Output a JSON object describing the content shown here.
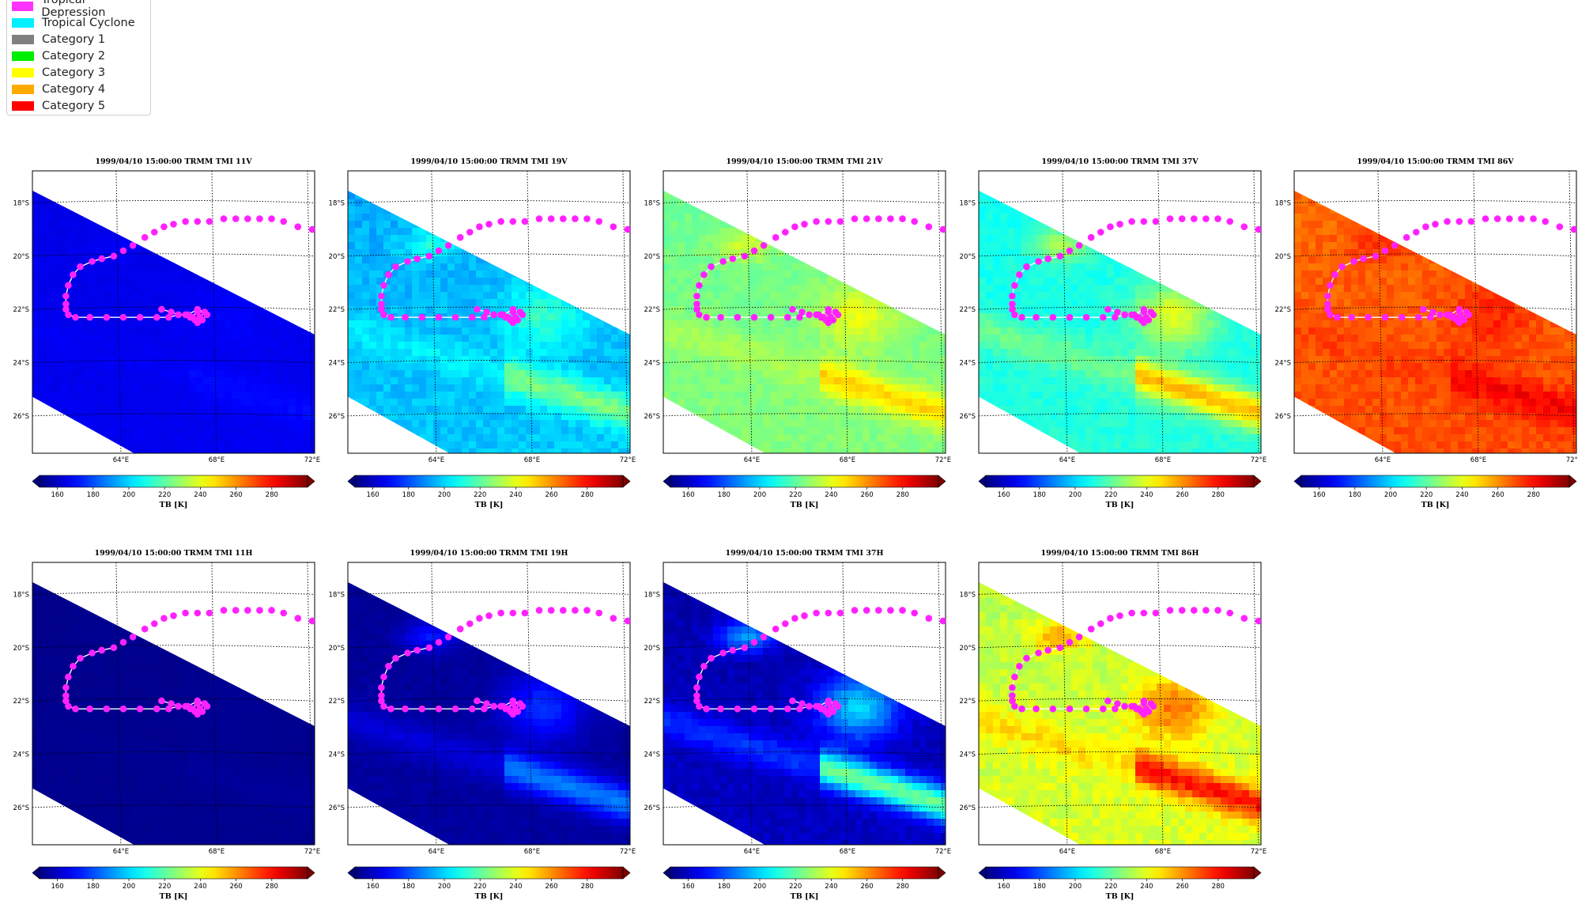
{
  "legend": {
    "items": [
      {
        "label": "Tropical Depression",
        "color": "#ff33ff"
      },
      {
        "label": "Tropical Cyclone",
        "color": "#00f0ff"
      },
      {
        "label": "Category 1",
        "color": "#808080"
      },
      {
        "label": "Category 2",
        "color": "#00ee00"
      },
      {
        "label": "Category 3",
        "color": "#ffff00"
      },
      {
        "label": "Category 4",
        "color": "#ffaa00"
      },
      {
        "label": "Category 5",
        "color": "#ff0000"
      }
    ]
  },
  "colorbar": {
    "label": "TB [K]",
    "ticks": [
      "160",
      "180",
      "200",
      "220",
      "240",
      "260",
      "280"
    ],
    "tick_values": [
      160,
      180,
      200,
      220,
      240,
      260,
      280
    ],
    "range": [
      150,
      300
    ]
  },
  "map": {
    "lat_labels": [
      "18°S",
      "20°S",
      "22°S",
      "24°S",
      "26°S"
    ],
    "lat_values": [
      -18,
      -20,
      -22,
      -24,
      -26
    ],
    "lon_labels": [
      "64°E",
      "68°E",
      "72°E"
    ],
    "lon_values": [
      64,
      68,
      72
    ],
    "lon_range": [
      60.4,
      72.2
    ],
    "lat_range": [
      -27.4,
      -16.8
    ]
  },
  "chart_data": [
    {
      "type": "heatmap",
      "title": "1999/04/10 15:00:00  TRMM TMI 11V",
      "channel": "11V",
      "base_tb": 166,
      "storm_tb": 4,
      "noise": 2,
      "xlabel": "",
      "ylabel": "",
      "colorbar_label": "TB [K]"
    },
    {
      "type": "heatmap",
      "title": "1999/04/10 15:00:00  TRMM TMI 19V",
      "channel": "19V",
      "base_tb": 196,
      "storm_tb": 30,
      "noise": 8,
      "xlabel": "",
      "ylabel": "",
      "colorbar_label": "TB [K]"
    },
    {
      "type": "heatmap",
      "title": "1999/04/10 15:00:00  TRMM TMI 21V",
      "channel": "21V",
      "base_tb": 224,
      "storm_tb": 28,
      "noise": 6,
      "xlabel": "",
      "ylabel": "",
      "colorbar_label": "TB [K]"
    },
    {
      "type": "heatmap",
      "title": "1999/04/10 15:00:00  TRMM TMI 37V",
      "channel": "37V",
      "base_tb": 210,
      "storm_tb": 48,
      "noise": 6,
      "xlabel": "",
      "ylabel": "",
      "colorbar_label": "TB [K]"
    },
    {
      "type": "heatmap",
      "title": "1999/04/10 15:00:00  TRMM TMI 86V",
      "channel": "86V",
      "base_tb": 268,
      "storm_tb": 14,
      "noise": 8,
      "xlabel": "",
      "ylabel": "",
      "colorbar_label": "TB [K]"
    },
    {
      "type": "heatmap",
      "title": "1999/04/10 15:00:00  TRMM TMI 11H",
      "channel": "11H",
      "base_tb": 152,
      "storm_tb": 2,
      "noise": 1,
      "xlabel": "",
      "ylabel": "",
      "colorbar_label": "TB [K]"
    },
    {
      "type": "heatmap",
      "title": "1999/04/10 15:00:00  TRMM TMI 19H",
      "channel": "19H",
      "base_tb": 154,
      "storm_tb": 36,
      "noise": 3,
      "xlabel": "",
      "ylabel": "",
      "colorbar_label": "TB [K]"
    },
    {
      "type": "heatmap",
      "title": "1999/04/10 15:00:00  TRMM TMI 37H",
      "channel": "37H",
      "base_tb": 158,
      "storm_tb": 70,
      "noise": 6,
      "xlabel": "",
      "ylabel": "",
      "colorbar_label": "TB [K]"
    },
    {
      "type": "heatmap",
      "title": "1999/04/10 15:00:00  TRMM TMI 86H",
      "channel": "86H",
      "base_tb": 236,
      "storm_tb": 46,
      "noise": 10,
      "xlabel": "",
      "ylabel": "",
      "colorbar_label": "TB [K]"
    }
  ],
  "track": {
    "lon": [
      60.0,
      60.8,
      61.6,
      62.4,
      63.2,
      64.1,
      65.0,
      65.8,
      66.5,
      67.4,
      68.2,
      69.2,
      70.0,
      70.8,
      71.5,
      72.0
    ],
    "lat": [
      -21.4,
      -20.9,
      -20.3,
      -19.9,
      -19.6,
      -19.6,
      -19.5,
      -19.1,
      -18.9,
      -18.7,
      -18.7,
      -18.6,
      -18.6,
      -18.8,
      -19.0,
      -19.1
    ],
    "lon_full": [
      72.6,
      72.1,
      71.5,
      70.9,
      70.4,
      69.9,
      69.4,
      68.9,
      68.4,
      67.8,
      67.3,
      66.8,
      66.3,
      65.9,
      65.5,
      65.1,
      64.6,
      64.2,
      63.8,
      63.3,
      62.9,
      62.4,
      62.1,
      61.9,
      61.8,
      61.8,
      61.8,
      61.9,
      62.2,
      62.8,
      63.5,
      64.2,
      64.9,
      65.6,
      66.1,
      66.5,
      66.8,
      67.1,
      67.3,
      67.5,
      67.7,
      67.6,
      67.3,
      67.0,
      67.2,
      67.4,
      67.6,
      67.3,
      66.9,
      66.5,
      66.2,
      65.8
    ],
    "lat_full": [
      -19.0,
      -19.0,
      -18.9,
      -18.7,
      -18.6,
      -18.6,
      -18.6,
      -18.6,
      -18.6,
      -18.7,
      -18.7,
      -18.7,
      -18.8,
      -18.9,
      -19.1,
      -19.3,
      -19.6,
      -19.8,
      -20.0,
      -20.1,
      -20.2,
      -20.4,
      -20.7,
      -21.1,
      -21.5,
      -21.8,
      -22.0,
      -22.2,
      -22.3,
      -22.3,
      -22.3,
      -22.3,
      -22.3,
      -22.3,
      -22.3,
      -22.2,
      -22.2,
      -22.3,
      -22.5,
      -22.4,
      -22.2,
      -22.1,
      -22.1,
      -22.3,
      -22.4,
      -22.3,
      -22.1,
      -22.0,
      -22.2,
      -22.2,
      -22.1,
      -22.0
    ]
  }
}
